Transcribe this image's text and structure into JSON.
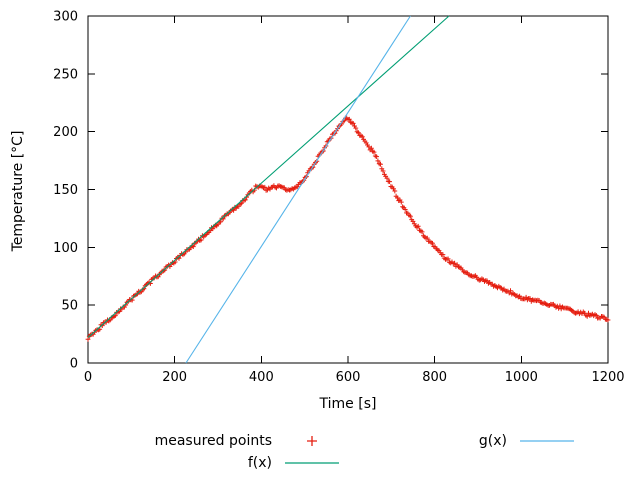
{
  "axes": {
    "xlabel": "Time [s]",
    "ylabel": "Temperature [°C]"
  },
  "legend": {
    "measured_label": "measured points",
    "f_label": "f(x)",
    "g_label": "g(x)"
  },
  "colors": {
    "measured": "#e51e10",
    "f": "#009e73",
    "g": "#56b4e9",
    "axis": "#000000",
    "background": "#ffffff"
  },
  "chart_data": {
    "type": "scatter",
    "title": "",
    "xlabel": "Time [s]",
    "ylabel": "Temperature [°C]",
    "xlim": [
      0,
      1200
    ],
    "ylim": [
      0,
      300
    ],
    "xticks": [
      0,
      200,
      400,
      600,
      800,
      1000,
      1200
    ],
    "yticks": [
      0,
      50,
      100,
      150,
      200,
      250,
      300
    ],
    "grid": false,
    "legend_position": "below-plot",
    "series": [
      {
        "name": "measured points",
        "type": "points",
        "marker": "plus",
        "color": "#e51e10",
        "jitter": 3,
        "step": 3,
        "data": [
          [
            0,
            22
          ],
          [
            50,
            38
          ],
          [
            100,
            55
          ],
          [
            150,
            72
          ],
          [
            200,
            88
          ],
          [
            250,
            104
          ],
          [
            300,
            121
          ],
          [
            350,
            137
          ],
          [
            385,
            151
          ],
          [
            392,
            153
          ],
          [
            402,
            152
          ],
          [
            412,
            150
          ],
          [
            422,
            151
          ],
          [
            432,
            153
          ],
          [
            442,
            152
          ],
          [
            452,
            151
          ],
          [
            462,
            150
          ],
          [
            472,
            150
          ],
          [
            482,
            152
          ],
          [
            495,
            157
          ],
          [
            510,
            165
          ],
          [
            530,
            177
          ],
          [
            550,
            189
          ],
          [
            570,
            200
          ],
          [
            585,
            207
          ],
          [
            595,
            211
          ],
          [
            605,
            209
          ],
          [
            615,
            205
          ],
          [
            625,
            199
          ],
          [
            635,
            193
          ],
          [
            645,
            188
          ],
          [
            655,
            184
          ],
          [
            665,
            179
          ],
          [
            680,
            167
          ],
          [
            695,
            156
          ],
          [
            710,
            146
          ],
          [
            725,
            137
          ],
          [
            740,
            128
          ],
          [
            755,
            120
          ],
          [
            770,
            113
          ],
          [
            785,
            107
          ],
          [
            800,
            101
          ],
          [
            812,
            96
          ],
          [
            825,
            91
          ],
          [
            840,
            87
          ],
          [
            860,
            82
          ],
          [
            880,
            77
          ],
          [
            900,
            73
          ],
          [
            925,
            69
          ],
          [
            950,
            65
          ],
          [
            975,
            61
          ],
          [
            1000,
            57
          ],
          [
            1030,
            54
          ],
          [
            1060,
            51
          ],
          [
            1090,
            48
          ],
          [
            1120,
            45
          ],
          [
            1150,
            42
          ],
          [
            1175,
            40
          ],
          [
            1200,
            38
          ]
        ]
      },
      {
        "name": "f(x)",
        "type": "line",
        "color": "#009e73",
        "endpoints": [
          [
            0,
            22
          ],
          [
            833,
            300
          ]
        ]
      },
      {
        "name": "g(x)",
        "type": "line",
        "color": "#56b4e9",
        "endpoints": [
          [
            226,
            0
          ],
          [
            744,
            300
          ]
        ]
      }
    ]
  }
}
